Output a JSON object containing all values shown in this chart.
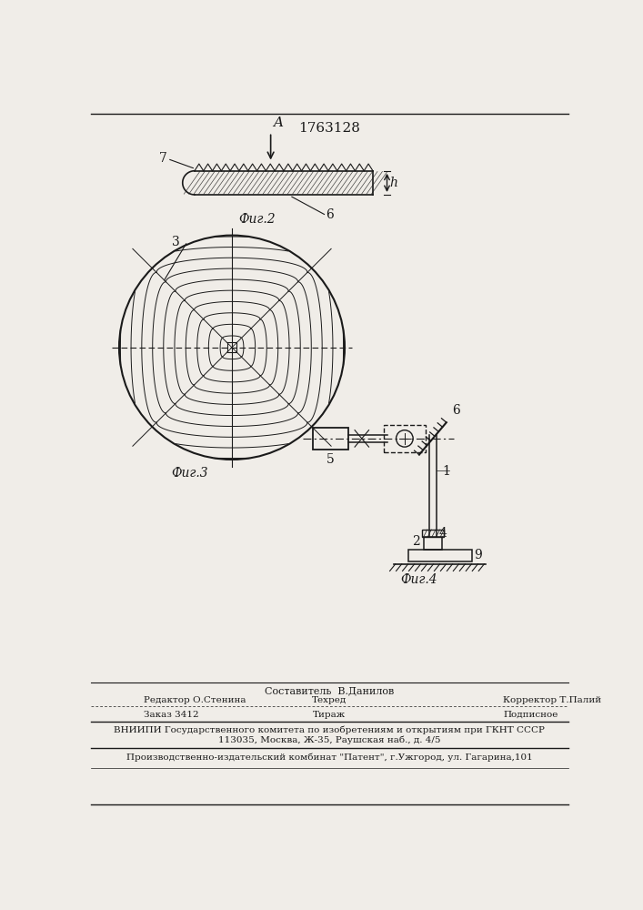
{
  "title": "1763128",
  "bg_color": "#f0ede8",
  "line_color": "#1a1a1a",
  "fig2_label": "Фиг.2",
  "fig3_label": "Фиг.3",
  "fig4_label": "Фиг.4",
  "footer_sostavitel": "Составитель  В.Данилов",
  "footer_editor": "Редактор О.Стенина",
  "footer_tech": "Техред",
  "footer_corrector": "Корректор Т.Палий",
  "footer_order": "Заказ 3412",
  "footer_tirazh": "Тираж",
  "footer_podpisnoe": "Подписное",
  "footer_vniiipi": "ВНИИПИ Государственного комитета по изобретениям и открытиям при ГКНТ СССР",
  "footer_address": "113035, Москва, Ж-35, Раушская наб., д. 4/5",
  "footer_patent": "Производственно-издательский комбинат \"Патент\", г.Ужгород, ул. Гагарина,101"
}
